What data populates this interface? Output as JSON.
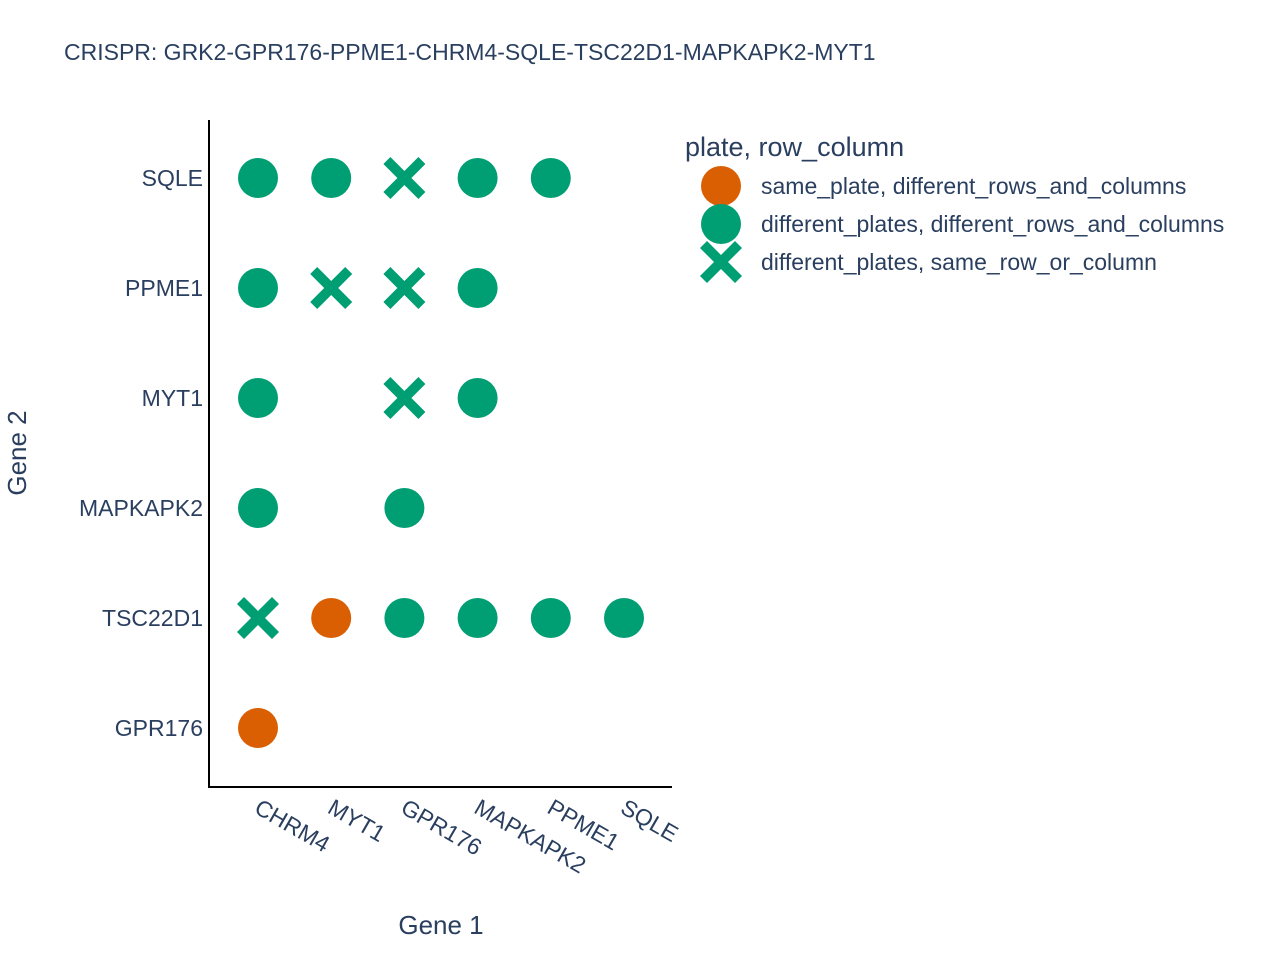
{
  "chart_data": {
    "type": "scatter",
    "title": "CRISPR: GRK2-GPR176-PPME1-CHRM4-SQLE-TSC22D1-MAPKAPK2-MYT1",
    "xlabel": "Gene 1",
    "ylabel": "Gene 2",
    "x_categories": [
      "CHRM4",
      "MYT1",
      "GPR176",
      "MAPKAPK2",
      "PPME1",
      "SQLE"
    ],
    "y_categories": [
      "GPR176",
      "TSC22D1",
      "MAPKAPK2",
      "MYT1",
      "PPME1",
      "SQLE"
    ],
    "grid": false,
    "legend": {
      "title": "plate, row_column",
      "placement": "top-right"
    },
    "series": [
      {
        "name": "same_plate, different_rows_and_columns",
        "symbol": "circle",
        "color": "#d95f02",
        "points": [
          {
            "x": "CHRM4",
            "y": "GPR176"
          },
          {
            "x": "MYT1",
            "y": "TSC22D1"
          }
        ]
      },
      {
        "name": "different_plates, different_rows_and_columns",
        "symbol": "circle",
        "color": "#009e73",
        "points": [
          {
            "x": "GPR176",
            "y": "TSC22D1"
          },
          {
            "x": "MAPKAPK2",
            "y": "TSC22D1"
          },
          {
            "x": "PPME1",
            "y": "TSC22D1"
          },
          {
            "x": "SQLE",
            "y": "TSC22D1"
          },
          {
            "x": "CHRM4",
            "y": "MAPKAPK2"
          },
          {
            "x": "GPR176",
            "y": "MAPKAPK2"
          },
          {
            "x": "CHRM4",
            "y": "MYT1"
          },
          {
            "x": "MAPKAPK2",
            "y": "MYT1"
          },
          {
            "x": "CHRM4",
            "y": "PPME1"
          },
          {
            "x": "MAPKAPK2",
            "y": "PPME1"
          },
          {
            "x": "CHRM4",
            "y": "SQLE"
          },
          {
            "x": "MYT1",
            "y": "SQLE"
          },
          {
            "x": "MAPKAPK2",
            "y": "SQLE"
          },
          {
            "x": "PPME1",
            "y": "SQLE"
          }
        ]
      },
      {
        "name": "different_plates, same_row_or_column",
        "symbol": "x",
        "color": "#009e73",
        "points": [
          {
            "x": "CHRM4",
            "y": "TSC22D1"
          },
          {
            "x": "GPR176",
            "y": "MYT1"
          },
          {
            "x": "MYT1",
            "y": "PPME1"
          },
          {
            "x": "GPR176",
            "y": "PPME1"
          },
          {
            "x": "GPR176",
            "y": "SQLE"
          }
        ]
      }
    ]
  }
}
